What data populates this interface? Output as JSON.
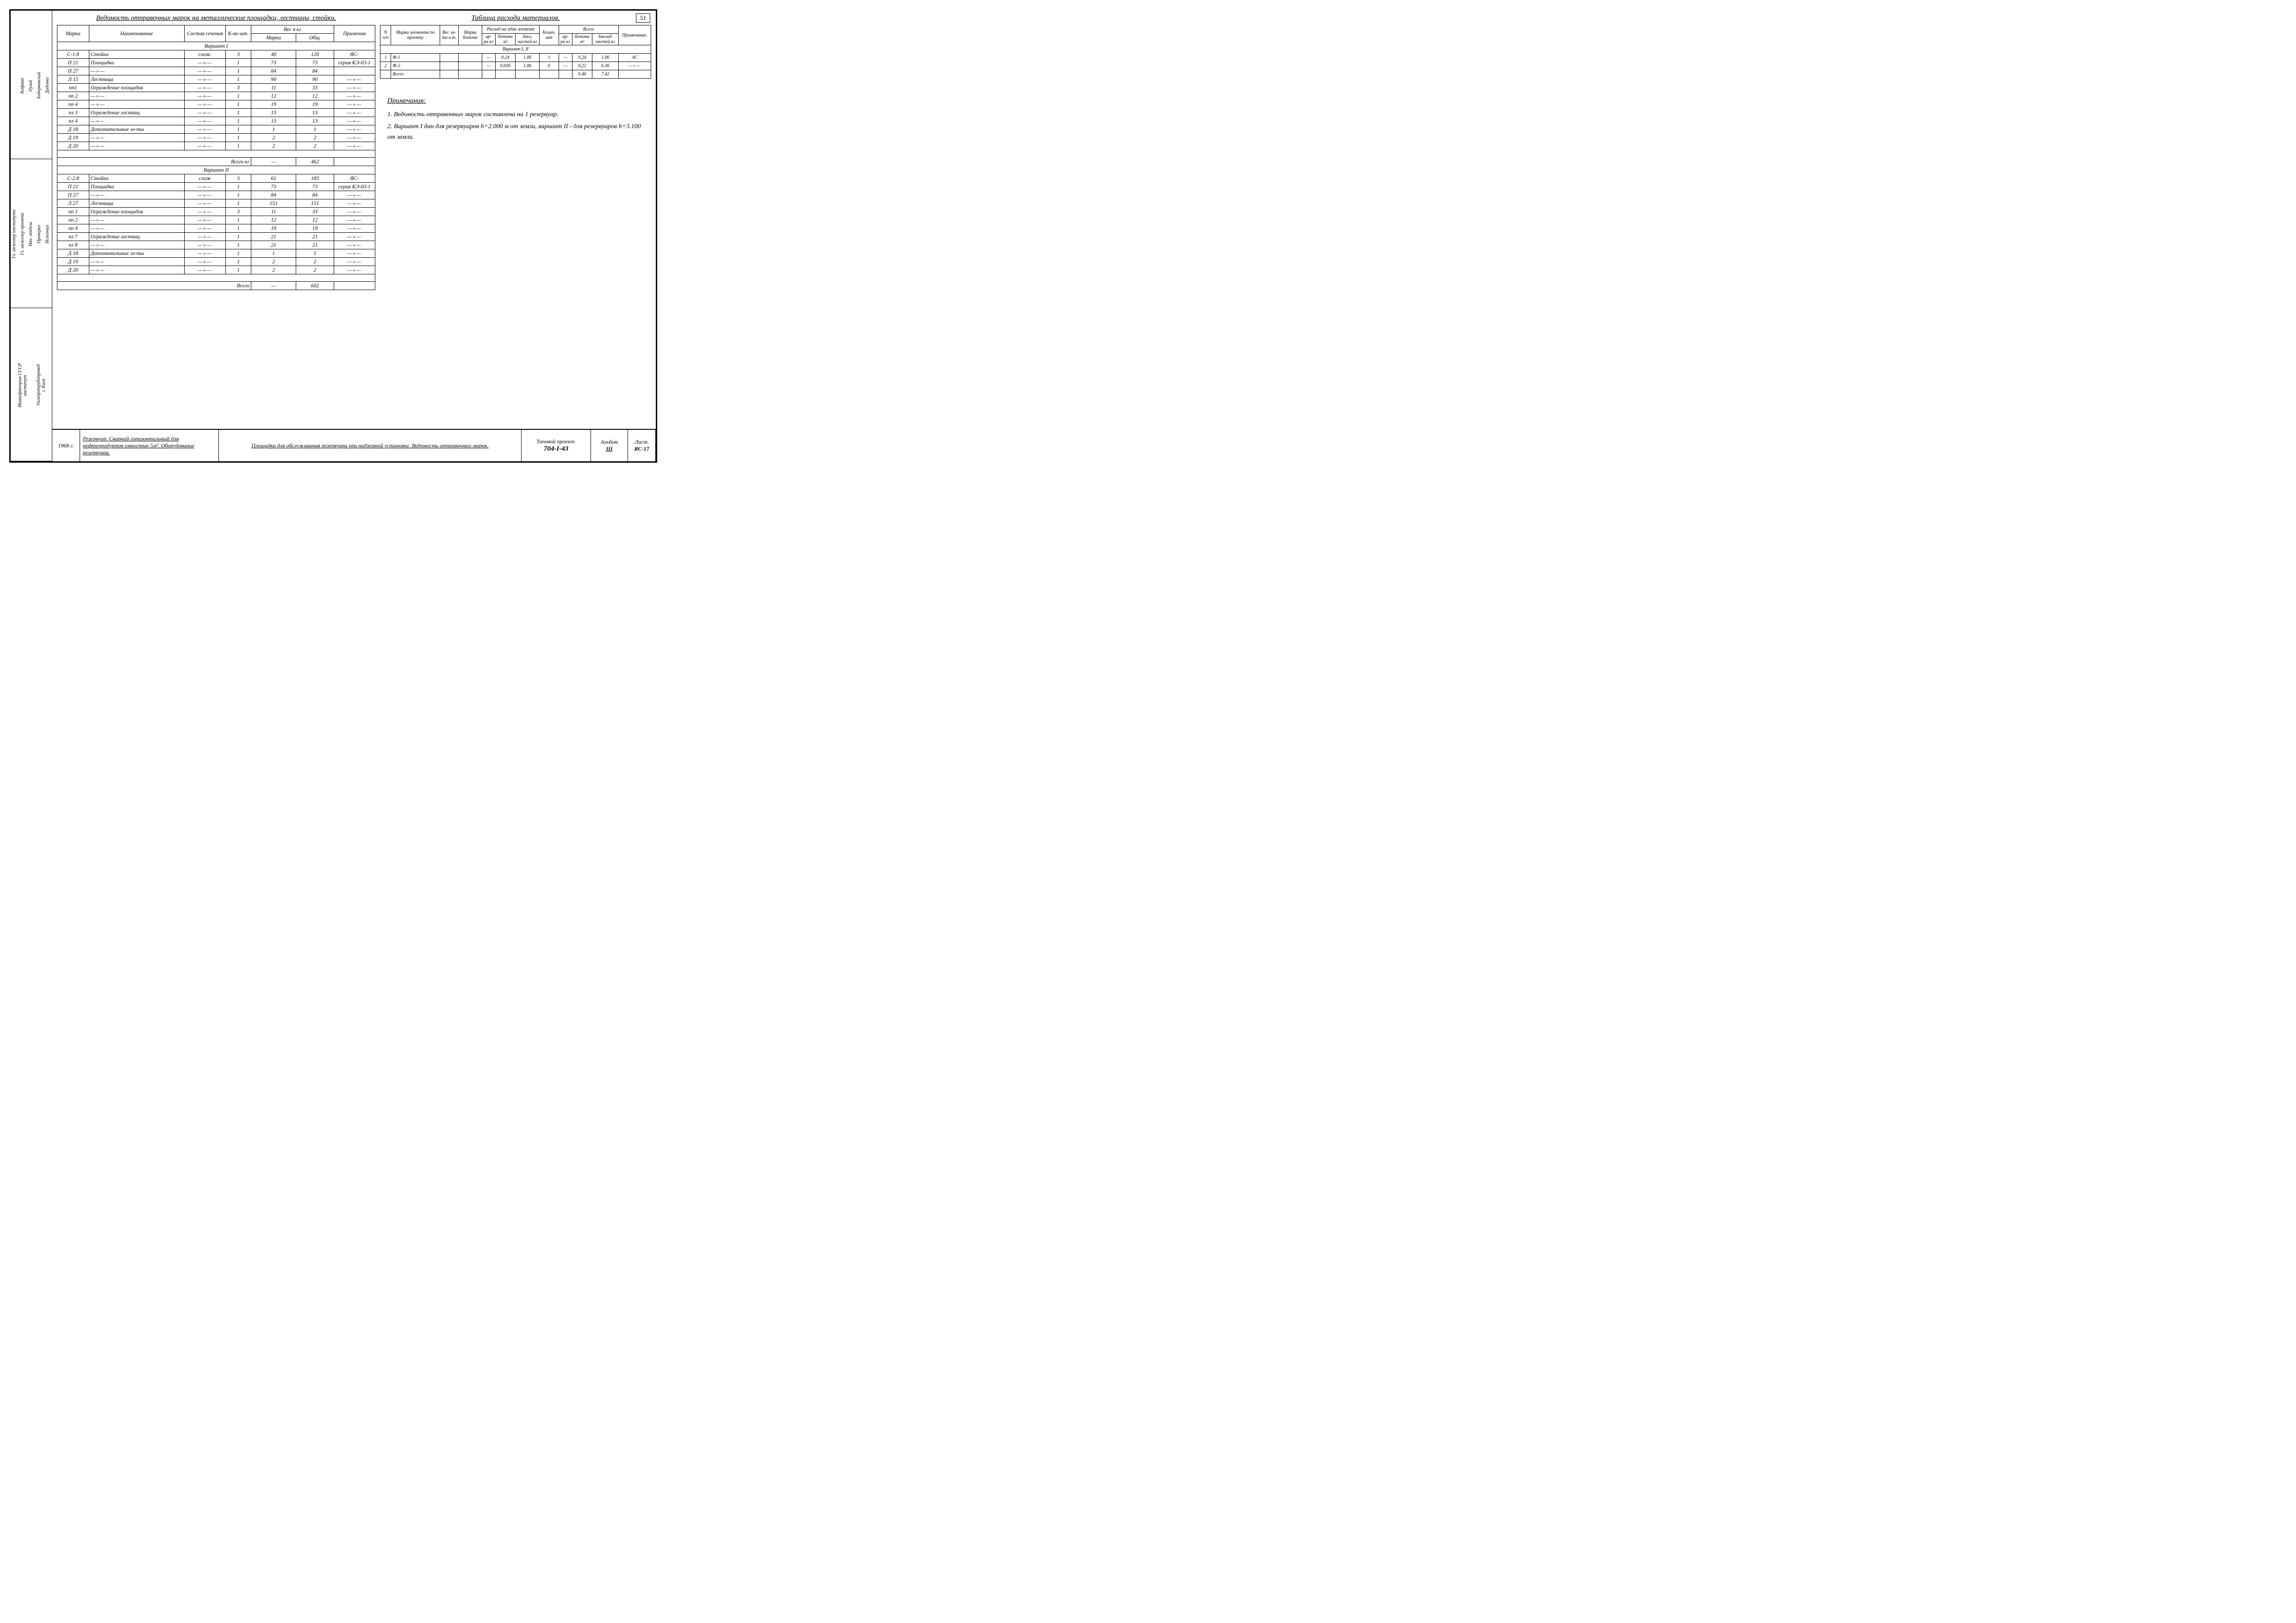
{
  "page_number": "51",
  "left_margin": {
    "org_lines": [
      "Миннефтепром СССР",
      "институт",
      "Укгипротрубопровод",
      "г. Киев"
    ],
    "roles": [
      "Гл. инженер института",
      "Гл. инженер проекта",
      "Нач. отдела",
      "Проверил",
      "Исполнил"
    ],
    "names": [
      "Кофман",
      "Уманец",
      "Пузий",
      "Ходорковский",
      "Диденко"
    ]
  },
  "table1": {
    "title": "Ведомость отправочных марок на металлические площадки, лестницы, стойки.",
    "headers": {
      "marka": "Марка",
      "name": "Наименование",
      "sostav": "Состав сечения",
      "kvo": "К-во шт.",
      "ves": "Вес в кг",
      "ves_marki": "Марки",
      "ves_obsh": "Общ.",
      "prim": "Примечан"
    },
    "variant1_label": "Вариант I",
    "variant1_rows": [
      {
        "m": "С-1.8",
        "n": "Стойки",
        "s": "слож.",
        "k": "3",
        "vm": "40",
        "vo": "120",
        "p": "ЯС-"
      },
      {
        "m": "П 21",
        "n": "Площадка",
        "s": "—»—",
        "k": "1",
        "vm": "73",
        "vo": "73",
        "p": "серия КЭ-03-1"
      },
      {
        "m": "П 27",
        "n": "—»—",
        "s": "—»—",
        "k": "1",
        "vm": "84",
        "vo": "84",
        "p": ""
      },
      {
        "m": "Л 15",
        "n": "Лестница",
        "s": "—»—",
        "k": "1",
        "vm": "90",
        "vo": "90",
        "p": "—»—"
      },
      {
        "m": "пп1",
        "n": "Ограждение площадок",
        "s": "—»—",
        "k": "3",
        "vm": "11",
        "vo": "33",
        "p": "—»—"
      },
      {
        "m": "пп 2",
        "n": "—»—",
        "s": "—»—",
        "k": "1",
        "vm": "12",
        "vo": "12",
        "p": "—»—"
      },
      {
        "m": "пп 4",
        "n": "—»—",
        "s": "—»—",
        "k": "1",
        "vm": "19",
        "vo": "19",
        "p": "—»—"
      },
      {
        "m": "пл 3",
        "n": "Ограждение лестниц",
        "s": "—»—",
        "k": "1",
        "vm": "13",
        "vo": "13",
        "p": "—»—"
      },
      {
        "m": "пл 4",
        "n": "—»—",
        "s": "—»—",
        "k": "1",
        "vm": "13",
        "vo": "13",
        "p": "—»—"
      },
      {
        "m": "Д 18",
        "n": "Дополнительные эл-ты",
        "s": "—»—",
        "k": "1",
        "vm": "1",
        "vo": "1",
        "p": "—»—"
      },
      {
        "m": "Д 19",
        "n": "—»—",
        "s": "—»—",
        "k": "1",
        "vm": "2",
        "vo": "2",
        "p": "—»—"
      },
      {
        "m": "Д 20",
        "n": "—»—",
        "s": "—»—",
        "k": "1",
        "vm": "2",
        "vo": "2",
        "p": "—»—"
      }
    ],
    "variant1_total_label": "Всего кг",
    "variant1_total": "462",
    "variant2_label": "Вариант II",
    "variant2_rows": [
      {
        "m": "С-2.8",
        "n": "Стойки",
        "s": "слож",
        "k": "3",
        "vm": "61",
        "vo": "183",
        "p": "ЯС-"
      },
      {
        "m": "П 21",
        "n": "Площадка",
        "s": "—»—",
        "k": "1",
        "vm": "73",
        "vo": "73",
        "p": "серия КЭ-03-1"
      },
      {
        "m": "П 27",
        "n": "—»—",
        "s": "—»—",
        "k": "1",
        "vm": "84",
        "vo": "84",
        "p": "—»—"
      },
      {
        "m": "Л 27",
        "n": "Лестница",
        "s": "—»—",
        "k": "1",
        "vm": "151",
        "vo": "151",
        "p": "—»—"
      },
      {
        "m": "пп 1",
        "n": "Ограждение площадок",
        "s": "—»—",
        "k": "3",
        "vm": "11",
        "vo": "33",
        "p": "—»—"
      },
      {
        "m": "пп 2",
        "n": "—»—",
        "s": "—»—",
        "k": "1",
        "vm": "12",
        "vo": "12",
        "p": "—»—"
      },
      {
        "m": "пп 4",
        "n": "—»—",
        "s": "—»—",
        "k": "1",
        "vm": "19",
        "vo": "19",
        "p": "—»—"
      },
      {
        "m": "пл 7",
        "n": "Ограждение лестниц",
        "s": "—»—",
        "k": "1",
        "vm": "21",
        "vo": "21",
        "p": "—»—"
      },
      {
        "m": "пл 8",
        "n": "—»—",
        "s": "—»—",
        "k": "1",
        "vm": "21",
        "vo": "21",
        "p": "—»—"
      },
      {
        "m": "Д 18",
        "n": "Дополнительные эл-ты",
        "s": "—»—",
        "k": "1",
        "vm": "1",
        "vo": "1",
        "p": "—»—"
      },
      {
        "m": "Д 19",
        "n": "—»—",
        "s": "—»—",
        "k": "1",
        "vm": "2",
        "vo": "2",
        "p": "—»—"
      },
      {
        "m": "Д 20",
        "n": "—»—",
        "s": "—»—",
        "k": "1",
        "vm": "2",
        "vo": "2",
        "p": "—»—"
      }
    ],
    "variant2_total_label": "Всего",
    "variant2_total": "602"
  },
  "table2": {
    "title": "Таблица расхода материалов.",
    "headers": {
      "n": "N п/п",
      "marka": "Марка элемента по проекту",
      "ves": "Вес эл-та в т.",
      "marka_bet": "Марка бетона",
      "arra": "ар-ра кг",
      "beton": "бетона м³",
      "zakl": "Закл. частей кг",
      "kol": "Колич. шт",
      "arra2": "ар-ра кг",
      "beton2": "бетона м³",
      "zakl2": "Заклад. частей кг",
      "prim": "Примечание.",
      "rashod": "Расход на один элемент",
      "vsego": "Всего"
    },
    "variant_label": "Вариант I, II",
    "rows": [
      {
        "n": "1",
        "m": "Ф-1",
        "v": "",
        "mb": "",
        "a": "—",
        "b": "0,24",
        "z": "1.06",
        "k": "1",
        "a2": "—",
        "b2": "0,24",
        "z2": "1.06",
        "p": "АС"
      },
      {
        "n": "2",
        "m": "Ф-2",
        "v": "",
        "mb": "",
        "a": "—",
        "b": "0,036",
        "z": "1.06",
        "k": "6",
        "a2": "—",
        "b2": "0,22",
        "z2": "6.36",
        "p": "—»—"
      }
    ],
    "total_label": "Всего",
    "total": {
      "b2": "0.46",
      "z2": "7.42"
    }
  },
  "notes": {
    "title": "Примечания:",
    "items": [
      "1. Ведомость отправочных марок составлена на 1 резервуар.",
      "2. Вариант I дан для резервуаров h=2.000 м от земли, вариант II - для резервуаров h=3.100 от земли."
    ]
  },
  "title_block": {
    "year": "1968 г.",
    "desc": "Резервуар. Сварной горизонтальный для нефтепродуктов емкостью 5м³. Оборудование резервуара.",
    "main": "Площадка для обслуживания резервуара при надземной установке. Ведомость отправочных марок.",
    "project_label": "Типовой проект.",
    "project_num": "704-I-43",
    "album_label": "Альбом",
    "album_num": "III",
    "sheet_label": "Лист.",
    "sheet_num": "ЯС-17"
  }
}
